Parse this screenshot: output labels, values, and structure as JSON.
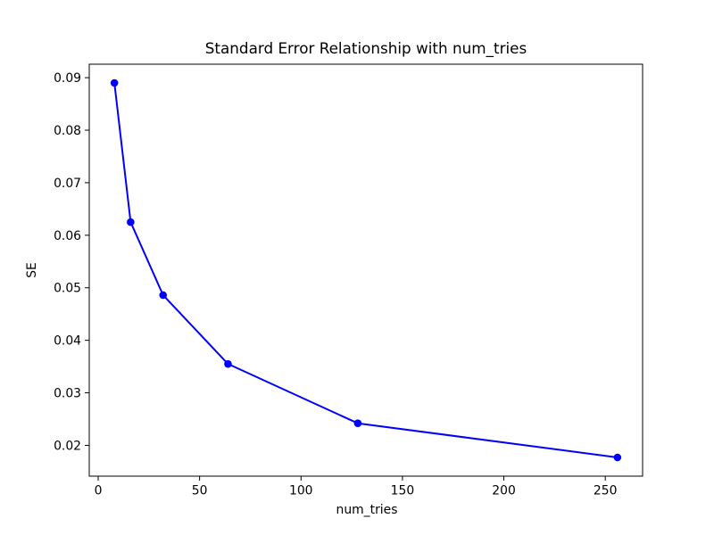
{
  "figure": {
    "background": "#ffffff",
    "text_color": "#000000",
    "spine_color": "#000000"
  },
  "chart_data": {
    "type": "line",
    "title": "Standard Error Relationship with num_tries",
    "xlabel": "num_tries",
    "ylabel": "SE",
    "x": [
      8,
      16,
      32,
      64,
      128,
      256
    ],
    "series": [
      {
        "name": "SE",
        "values": [
          0.089,
          0.0625,
          0.0486,
          0.0355,
          0.0242,
          0.0177
        ],
        "color": "#0000ff",
        "marker": "circle",
        "line_style": "solid"
      }
    ],
    "xlim": [
      -4.4,
      268.4
    ],
    "ylim": [
      0.014135,
      0.092565
    ],
    "xticks": [
      0,
      50,
      100,
      150,
      200,
      250
    ],
    "yticks": [
      0.02,
      0.03,
      0.04,
      0.05,
      0.06,
      0.07,
      0.08,
      0.09
    ],
    "ytick_decimals": 2,
    "grid": false,
    "legend": false,
    "line_width": 2,
    "marker_radius": 4.3
  }
}
